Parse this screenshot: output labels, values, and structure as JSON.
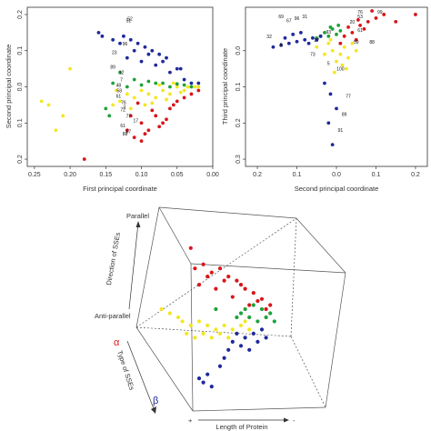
{
  "colors": {
    "red": "#d8161b",
    "yellow": "#f4e623",
    "green": "#1ea23a",
    "blue": "#1f2a9a",
    "black": "#111111"
  },
  "chart_data": [
    {
      "type": "scatter",
      "xlabel": "First principal coordinate",
      "ylabel": "Second principal coordinate",
      "xlim": [
        0.26,
        0.0
      ],
      "ylim": [
        0.22,
        -0.22
      ],
      "x_ticks": [
        "0.25",
        "0.20",
        "0.15",
        "0.10",
        "0.05",
        "0.00"
      ],
      "x_tick_values": [
        0.25,
        0.2,
        0.15,
        0.1,
        0.05,
        0.0
      ],
      "y_ticks": [
        "0.2",
        "0.1",
        "0.0",
        "0.1",
        "0.2"
      ],
      "y_tick_values": [
        0.2,
        0.1,
        0.0,
        -0.1,
        -0.2
      ],
      "point_labels": [
        {
          "text": "88",
          "x": 0.123,
          "y": -0.135
        },
        {
          "text": "57",
          "x": 0.118,
          "y": -0.128
        },
        {
          "text": "77",
          "x": 0.118,
          "y": -0.085
        },
        {
          "text": "61",
          "x": 0.126,
          "y": -0.112
        },
        {
          "text": "72",
          "x": 0.126,
          "y": -0.068
        },
        {
          "text": "3",
          "x": 0.124,
          "y": -0.06
        },
        {
          "text": "76",
          "x": 0.125,
          "y": -0.048
        },
        {
          "text": "61",
          "x": 0.132,
          "y": -0.03
        },
        {
          "text": "58",
          "x": 0.131,
          "y": -0.015
        },
        {
          "text": "48",
          "x": 0.132,
          "y": 0.0
        },
        {
          "text": "7",
          "x": 0.128,
          "y": 0.015
        },
        {
          "text": "12",
          "x": 0.128,
          "y": 0.035
        },
        {
          "text": "23",
          "x": 0.138,
          "y": 0.09
        },
        {
          "text": "89",
          "x": 0.14,
          "y": 0.05
        },
        {
          "text": "96",
          "x": 0.123,
          "y": 0.115
        },
        {
          "text": "51",
          "x": 0.118,
          "y": 0.178
        },
        {
          "text": "52",
          "x": 0.116,
          "y": 0.183
        },
        {
          "text": "17",
          "x": 0.108,
          "y": -0.098
        }
      ],
      "series": [
        {
          "color": "red",
          "x": [
            0.11,
            0.09,
            0.07,
            0.1,
            0.08,
            0.06,
            0.12,
            0.05,
            0.075,
            0.095,
            0.115,
            0.065,
            0.085,
            0.105,
            0.04,
            0.055,
            0.03,
            0.02,
            0.18,
            0.1
          ],
          "y": [
            -0.14,
            -0.12,
            -0.1,
            -0.1,
            -0.08,
            -0.06,
            -0.12,
            -0.04,
            -0.11,
            -0.13,
            -0.08,
            -0.09,
            -0.065,
            -0.045,
            -0.03,
            -0.05,
            -0.02,
            -0.01,
            -0.2,
            -0.15
          ]
        },
        {
          "color": "yellow",
          "x": [
            0.13,
            0.11,
            0.09,
            0.07,
            0.05,
            0.12,
            0.1,
            0.08,
            0.06,
            0.04,
            0.035,
            0.025,
            0.14,
            0.135,
            0.02,
            0.085,
            0.065,
            0.045,
            0.115,
            0.095,
            0.24,
            0.23,
            0.21,
            0.2,
            0.22,
            0.055,
            0.075
          ],
          "y": [
            -0.04,
            -0.03,
            -0.02,
            -0.01,
            0.0,
            -0.02,
            -0.01,
            -0.03,
            -0.02,
            -0.01,
            0.0,
            0.0,
            -0.05,
            -0.01,
            0.0,
            -0.045,
            -0.035,
            -0.015,
            -0.06,
            -0.05,
            -0.04,
            -0.05,
            -0.08,
            0.05,
            -0.12,
            0.01,
            0.005
          ]
        },
        {
          "color": "green",
          "x": [
            0.14,
            0.12,
            0.1,
            0.08,
            0.06,
            0.04,
            0.03,
            0.15,
            0.11,
            0.09,
            0.07,
            0.05,
            0.13,
            0.145
          ],
          "y": [
            0.01,
            0.0,
            0.005,
            0.01,
            0.0,
            0.005,
            0.0,
            -0.06,
            0.02,
            0.015,
            0.01,
            0.008,
            0.04,
            -0.08
          ]
        },
        {
          "color": "blue",
          "x": [
            0.12,
            0.1,
            0.08,
            0.06,
            0.04,
            0.03,
            0.11,
            0.09,
            0.07,
            0.05,
            0.13,
            0.115,
            0.095,
            0.075,
            0.16,
            0.155,
            0.14,
            0.125,
            0.105,
            0.085,
            0.065,
            0.045,
            0.02
          ],
          "y": [
            0.08,
            0.07,
            0.06,
            0.04,
            0.02,
            0.01,
            0.1,
            0.09,
            0.07,
            0.05,
            0.12,
            0.13,
            0.11,
            0.09,
            0.15,
            0.14,
            0.13,
            0.14,
            0.12,
            0.1,
            0.08,
            0.05,
            0.01
          ]
        }
      ]
    },
    {
      "type": "scatter",
      "xlabel": "Second principal coordinate",
      "ylabel": "Third principal coordinate",
      "xlim": [
        0.23,
        -0.23
      ],
      "ylim": [
        -0.12,
        0.32
      ],
      "x_ticks": [
        "0.2",
        "0.1",
        "0.0",
        "0.1",
        "0.2"
      ],
      "x_tick_values": [
        0.2,
        0.1,
        0.0,
        -0.1,
        -0.2
      ],
      "y_ticks": [
        "0.0",
        "0.1",
        "0.2",
        "0.3"
      ],
      "y_tick_values": [
        0.0,
        0.1,
        0.2,
        0.3
      ],
      "point_labels": [
        {
          "text": "76",
          "x": -0.06,
          "y": -0.103
        },
        {
          "text": "99",
          "x": -0.11,
          "y": -0.103
        },
        {
          "text": "53",
          "x": -0.06,
          "y": -0.09
        },
        {
          "text": "20",
          "x": -0.04,
          "y": -0.075
        },
        {
          "text": "61",
          "x": -0.06,
          "y": -0.052
        },
        {
          "text": "93",
          "x": 0.02,
          "y": -0.047
        },
        {
          "text": "59",
          "x": -0.05,
          "y": -0.02
        },
        {
          "text": "88",
          "x": -0.09,
          "y": -0.02
        },
        {
          "text": "69",
          "x": 0.14,
          "y": -0.09
        },
        {
          "text": "96",
          "x": 0.1,
          "y": -0.085
        },
        {
          "text": "31",
          "x": 0.08,
          "y": -0.09
        },
        {
          "text": "67",
          "x": 0.12,
          "y": -0.078
        },
        {
          "text": "32",
          "x": 0.17,
          "y": -0.035
        },
        {
          "text": "8",
          "x": 0.14,
          "y": -0.012
        },
        {
          "text": "27",
          "x": 0.05,
          "y": -0.025
        },
        {
          "text": "73",
          "x": 0.06,
          "y": 0.015
        },
        {
          "text": "5",
          "x": 0.02,
          "y": 0.04
        },
        {
          "text": "100",
          "x": -0.01,
          "y": 0.055
        },
        {
          "text": "77",
          "x": -0.03,
          "y": 0.13
        },
        {
          "text": "89",
          "x": -0.02,
          "y": 0.18
        },
        {
          "text": "91",
          "x": -0.01,
          "y": 0.225
        }
      ],
      "series": [
        {
          "color": "red",
          "x": [
            -0.02,
            -0.04,
            -0.06,
            -0.08,
            -0.1,
            -0.05,
            -0.07,
            -0.03,
            -0.12,
            -0.09,
            -0.15,
            -0.2,
            -0.01,
            -0.055
          ],
          "y": [
            -0.04,
            -0.05,
            -0.07,
            -0.08,
            -0.09,
            -0.03,
            -0.06,
            -0.065,
            -0.1,
            -0.11,
            -0.08,
            -0.1,
            -0.02,
            -0.085
          ]
        },
        {
          "color": "yellow",
          "x": [
            0.02,
            0.01,
            -0.01,
            -0.02,
            -0.03,
            0.03,
            0.0,
            -0.04,
            -0.015,
            0.015,
            -0.05,
            0.05,
            -0.025,
            0.005
          ],
          "y": [
            -0.02,
            0.0,
            0.01,
            -0.01,
            0.02,
            0.01,
            0.03,
            -0.02,
            0.04,
            -0.03,
            0.0,
            -0.01,
            0.05,
            0.06
          ]
        },
        {
          "color": "green",
          "x": [
            0.03,
            0.02,
            0.01,
            0.0,
            -0.01,
            0.04,
            0.05,
            0.015,
            -0.005
          ],
          "y": [
            -0.05,
            -0.04,
            -0.06,
            -0.045,
            -0.055,
            -0.04,
            -0.035,
            -0.065,
            -0.07
          ]
        },
        {
          "color": "blue",
          "x": [
            0.12,
            0.1,
            0.08,
            0.06,
            0.04,
            0.14,
            0.16,
            0.11,
            0.09,
            0.07,
            0.05,
            0.13,
            0.03,
            0.015,
            0.0,
            0.01,
            0.02
          ],
          "y": [
            -0.02,
            -0.025,
            -0.03,
            -0.035,
            -0.04,
            -0.015,
            -0.01,
            -0.045,
            -0.05,
            -0.02,
            -0.03,
            -0.035,
            0.09,
            0.12,
            0.16,
            0.26,
            0.2
          ]
        }
      ]
    },
    {
      "type": "scatter",
      "axis_labels": {
        "vertical_top": "Parallel",
        "vertical_title": "Direction of SSEs",
        "vertical_bottom": "Anti-parallel",
        "alpha": "α",
        "type_title": "Type of SSEs",
        "beta": "β",
        "plus": "+",
        "length_title": "Length of Protein",
        "minus": "-"
      },
      "series": [
        {
          "color": "red",
          "u": [
            0.28,
            0.32,
            0.36,
            0.4,
            0.44,
            0.48,
            0.52,
            0.56,
            0.6,
            0.64,
            0.3,
            0.38,
            0.46,
            0.54,
            0.62,
            0.34,
            0.42,
            0.5,
            0.58,
            0.26
          ],
          "v": [
            0.7,
            0.72,
            0.68,
            0.7,
            0.66,
            0.64,
            0.6,
            0.58,
            0.55,
            0.52,
            0.62,
            0.6,
            0.56,
            0.52,
            0.5,
            0.66,
            0.64,
            0.62,
            0.54,
            0.8
          ]
        },
        {
          "color": "yellow",
          "u": [
            0.22,
            0.26,
            0.3,
            0.34,
            0.38,
            0.42,
            0.46,
            0.5,
            0.54,
            0.24,
            0.28,
            0.32,
            0.36,
            0.4,
            0.44,
            0.48,
            0.12,
            0.16,
            0.2,
            0.52
          ],
          "v": [
            0.44,
            0.42,
            0.44,
            0.42,
            0.4,
            0.42,
            0.4,
            0.42,
            0.4,
            0.38,
            0.36,
            0.38,
            0.36,
            0.38,
            0.36,
            0.38,
            0.5,
            0.48,
            0.46,
            0.44
          ]
        },
        {
          "color": "green",
          "u": [
            0.5,
            0.54,
            0.58,
            0.62,
            0.52,
            0.56,
            0.6,
            0.64,
            0.48,
            0.38,
            0.66
          ],
          "v": [
            0.48,
            0.46,
            0.44,
            0.46,
            0.5,
            0.52,
            0.5,
            0.48,
            0.46,
            0.5,
            0.44
          ]
        },
        {
          "color": "blue",
          "u": [
            0.48,
            0.52,
            0.56,
            0.6,
            0.5,
            0.54,
            0.58,
            0.62,
            0.46,
            0.44,
            0.42,
            0.4,
            0.3,
            0.32,
            0.34,
            0.36
          ],
          "v": [
            0.38,
            0.36,
            0.38,
            0.4,
            0.32,
            0.3,
            0.34,
            0.36,
            0.34,
            0.3,
            0.26,
            0.22,
            0.16,
            0.14,
            0.18,
            0.12
          ]
        }
      ]
    }
  ]
}
